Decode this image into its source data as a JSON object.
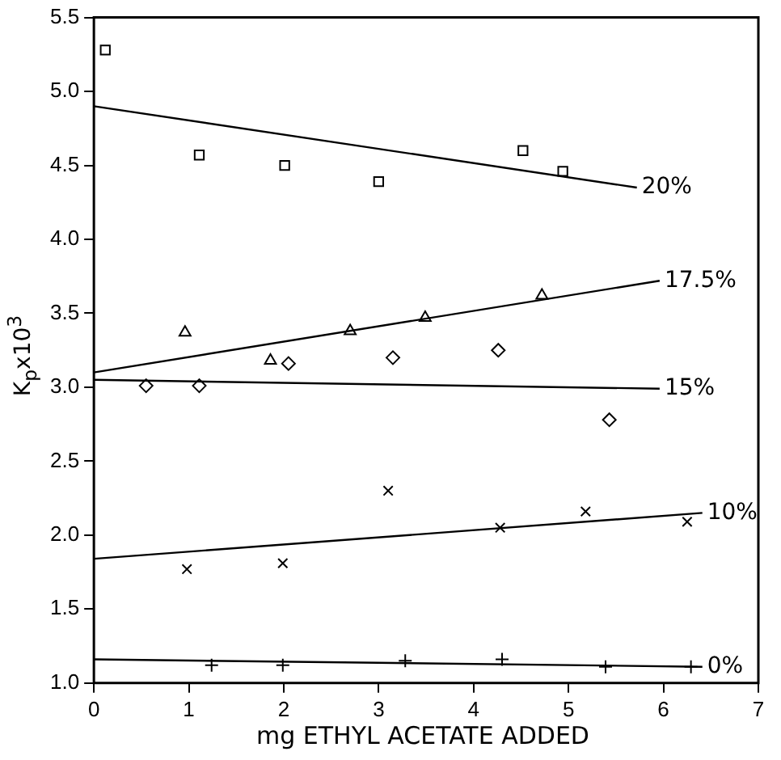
{
  "chart_data": {
    "type": "scatter",
    "xlabel": "mg ETHYL ACETATE ADDED",
    "ylabel": "K$_{p}$x10$^{3}$",
    "xlim": [
      0,
      7
    ],
    "ylim": [
      1,
      5.5
    ],
    "xticks": [
      0,
      1,
      2,
      3,
      4,
      5,
      6,
      7
    ],
    "yticks": [
      {
        "value": 1,
        "label": "1.0"
      },
      {
        "value": 1.5,
        "label": "1.5"
      },
      {
        "value": 2,
        "label": "2.0"
      },
      {
        "value": 2.5,
        "label": "2.5"
      },
      {
        "value": 3,
        "label": "3.0"
      },
      {
        "value": 3.5,
        "label": "3.5"
      },
      {
        "value": 4,
        "label": "4.0"
      },
      {
        "value": 4.5,
        "label": "4.5"
      },
      {
        "value": 5,
        "label": "5.0"
      },
      {
        "value": 5.5,
        "label": "5.5"
      }
    ],
    "grid": false,
    "legend": false,
    "series": [
      {
        "type": "scatter",
        "marker": "square",
        "color": "#000000",
        "x": [
          0.12,
          1.11,
          2.01,
          3.0,
          4.52,
          4.94
        ],
        "values": [
          5.28,
          4.57,
          4.5,
          4.39,
          4.6,
          4.46
        ]
      },
      {
        "type": "scatter",
        "marker": "triangle",
        "color": "#000000",
        "x": [
          0.96,
          1.86,
          2.7,
          3.49,
          4.72
        ],
        "values": [
          3.37,
          3.18,
          3.38,
          3.47,
          3.62
        ]
      },
      {
        "type": "scatter",
        "marker": "diamond",
        "color": "#000000",
        "x": [
          0.55,
          1.11,
          2.05,
          3.15,
          4.26,
          5.43
        ],
        "values": [
          3.01,
          3.01,
          3.16,
          3.2,
          3.25,
          2.78
        ]
      },
      {
        "type": "scatter",
        "marker": "cross",
        "color": "#000000",
        "x": [
          0.98,
          1.99,
          3.1,
          4.28,
          5.18,
          6.25
        ],
        "values": [
          1.77,
          1.81,
          2.3,
          2.05,
          2.16,
          2.09
        ]
      },
      {
        "type": "scatter",
        "marker": "plus",
        "color": "#000000",
        "x": [
          1.24,
          1.99,
          3.28,
          4.3,
          5.39,
          6.29
        ],
        "values": [
          1.12,
          1.12,
          1.15,
          1.16,
          1.11,
          1.11
        ]
      },
      {
        "type": "line",
        "name": "20%",
        "marker": "none",
        "color": "#000000",
        "x": [
          0,
          5.72
        ],
        "values": [
          4.9,
          4.35
        ]
      },
      {
        "type": "line",
        "name": "17.5%",
        "marker": "none",
        "color": "#000000",
        "x": [
          0,
          5.96
        ],
        "values": [
          3.1,
          3.72
        ]
      },
      {
        "type": "line",
        "name": "15%",
        "marker": "none",
        "color": "#000000",
        "x": [
          0,
          5.96
        ],
        "values": [
          3.05,
          2.99
        ]
      },
      {
        "type": "line",
        "name": "10%",
        "marker": "none",
        "color": "#000000",
        "x": [
          0,
          6.41
        ],
        "values": [
          1.84,
          2.15
        ]
      },
      {
        "type": "line",
        "name": "0%",
        "marker": "none",
        "color": "#000000",
        "x": [
          0,
          6.41
        ],
        "values": [
          1.16,
          1.11
        ]
      }
    ]
  }
}
